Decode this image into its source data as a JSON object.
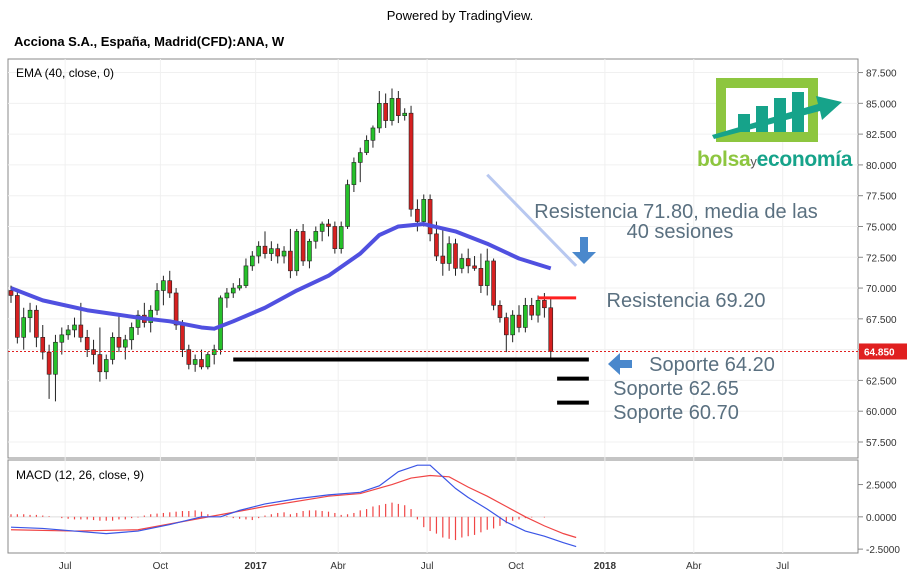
{
  "header": {
    "powered_by": "Powered by TradingView.",
    "symbol_title": "Acciona S.A., España, Madrid(CFD):ANA, W"
  },
  "indicators": {
    "ema_label": "EMA (40, close, 0)",
    "macd_label": "MACD (12, 26, close, 9)"
  },
  "logo": {
    "part1": "bolsa",
    "part2": "y",
    "part3": "economía",
    "colors": {
      "green": "#8dc63f",
      "teal": "#16a38a"
    }
  },
  "colors": {
    "up": "#26c12a",
    "down": "#d62020",
    "ema": "#5050e0",
    "macd": "#3a55e6",
    "signal": "#f04545",
    "resistance_line": "#ff2020",
    "support_line": "#000000",
    "annotation": "#5a7080",
    "arrow": "#4a88cc",
    "price_tag": "#e02020"
  },
  "chart_data": [
    {
      "type": "candlestick",
      "title": "Acciona S.A., España, Madrid(CFD):ANA, W",
      "y_axis_ticks": [
        "87.500",
        "85.000",
        "82.500",
        "80.000",
        "77.500",
        "75.000",
        "72.500",
        "70.000",
        "67.500",
        "65.000",
        "62.500",
        "60.000",
        "57.500"
      ],
      "x_axis_ticks": [
        "Jul",
        "Oct",
        "2017",
        "Abr",
        "Jul",
        "Oct",
        "2018",
        "Abr",
        "Jul"
      ],
      "ylim": [
        56.2,
        88.6
      ],
      "last_price_label": "64.850",
      "ohlc": [
        [
          69.8,
          70.2,
          68.8,
          69.4
        ],
        [
          69.4,
          69.8,
          65.5,
          66.0
        ],
        [
          66.0,
          68.4,
          65.0,
          67.6
        ],
        [
          67.6,
          68.8,
          66.4,
          68.2
        ],
        [
          68.2,
          68.6,
          65.2,
          66.0
        ],
        [
          66.0,
          67.0,
          64.2,
          64.8
        ],
        [
          64.8,
          65.4,
          61.0,
          63.0
        ],
        [
          63.0,
          66.2,
          60.8,
          65.6
        ],
        [
          65.6,
          66.8,
          64.6,
          66.2
        ],
        [
          66.2,
          67.0,
          65.8,
          66.6
        ],
        [
          66.6,
          67.6,
          66.0,
          67.0
        ],
        [
          67.0,
          68.8,
          65.6,
          66.0
        ],
        [
          66.0,
          66.6,
          64.4,
          65.0
        ],
        [
          65.0,
          65.8,
          63.8,
          64.6
        ],
        [
          64.6,
          66.8,
          62.4,
          63.2
        ],
        [
          63.2,
          64.6,
          62.6,
          64.2
        ],
        [
          64.2,
          66.4,
          63.8,
          66.0
        ],
        [
          66.0,
          67.8,
          64.8,
          65.2
        ],
        [
          65.2,
          66.2,
          64.2,
          65.8
        ],
        [
          65.8,
          67.2,
          65.0,
          66.8
        ],
        [
          66.8,
          68.2,
          66.2,
          67.8
        ],
        [
          67.8,
          68.8,
          66.8,
          67.2
        ],
        [
          67.2,
          68.6,
          66.4,
          68.2
        ],
        [
          68.2,
          70.4,
          67.8,
          69.8
        ],
        [
          69.8,
          71.0,
          68.6,
          70.6
        ],
        [
          70.6,
          71.4,
          69.2,
          69.6
        ],
        [
          69.6,
          70.0,
          66.6,
          67.0
        ],
        [
          67.0,
          67.4,
          64.4,
          65.0
        ],
        [
          65.0,
          65.4,
          63.4,
          63.8
        ],
        [
          63.8,
          64.6,
          63.2,
          64.2
        ],
        [
          64.2,
          65.0,
          63.4,
          63.6
        ],
        [
          63.6,
          64.8,
          63.4,
          64.6
        ],
        [
          64.6,
          65.4,
          63.8,
          65.0
        ],
        [
          65.0,
          69.4,
          64.6,
          69.2
        ],
        [
          69.2,
          70.0,
          68.4,
          69.6
        ],
        [
          69.6,
          70.4,
          69.2,
          70.0
        ],
        [
          70.0,
          70.8,
          69.8,
          70.2
        ],
        [
          70.2,
          72.4,
          70.0,
          71.8
        ],
        [
          71.8,
          73.0,
          71.4,
          72.6
        ],
        [
          72.6,
          73.8,
          72.0,
          73.4
        ],
        [
          73.4,
          74.6,
          72.4,
          72.8
        ],
        [
          72.8,
          73.8,
          72.2,
          73.2
        ],
        [
          73.2,
          73.6,
          72.0,
          72.6
        ],
        [
          72.6,
          73.4,
          72.0,
          73.0
        ],
        [
          73.0,
          74.8,
          70.8,
          71.4
        ],
        [
          71.4,
          74.8,
          71.0,
          74.6
        ],
        [
          74.6,
          75.2,
          71.8,
          72.2
        ],
        [
          72.2,
          74.0,
          71.6,
          73.8
        ],
        [
          73.8,
          75.0,
          73.2,
          74.6
        ],
        [
          74.6,
          75.4,
          73.8,
          75.2
        ],
        [
          75.2,
          75.6,
          74.2,
          75.0
        ],
        [
          75.0,
          75.4,
          72.8,
          73.2
        ],
        [
          73.2,
          75.4,
          72.8,
          75.0
        ],
        [
          75.0,
          78.8,
          74.8,
          78.4
        ],
        [
          78.4,
          80.6,
          77.8,
          80.2
        ],
        [
          80.2,
          81.4,
          78.6,
          81.0
        ],
        [
          81.0,
          82.4,
          80.8,
          82.0
        ],
        [
          82.0,
          83.2,
          81.4,
          83.0
        ],
        [
          83.0,
          86.0,
          82.6,
          85.0
        ],
        [
          85.0,
          85.8,
          83.0,
          83.6
        ],
        [
          83.6,
          86.2,
          83.2,
          85.4
        ],
        [
          85.4,
          86.0,
          83.4,
          84.0
        ],
        [
          84.0,
          84.6,
          83.6,
          84.2
        ],
        [
          84.2,
          84.8,
          75.8,
          76.4
        ],
        [
          76.4,
          77.2,
          74.6,
          75.4
        ],
        [
          75.4,
          77.6,
          75.0,
          77.2
        ],
        [
          77.2,
          77.6,
          73.8,
          74.4
        ],
        [
          74.4,
          75.4,
          72.2,
          72.6
        ],
        [
          72.6,
          74.8,
          71.0,
          72.0
        ],
        [
          72.0,
          74.2,
          71.4,
          73.6
        ],
        [
          73.6,
          74.0,
          71.0,
          71.6
        ],
        [
          71.6,
          72.8,
          71.2,
          72.4
        ],
        [
          72.4,
          73.2,
          71.2,
          71.8
        ],
        [
          71.8,
          72.6,
          71.4,
          71.6
        ],
        [
          71.6,
          72.8,
          69.6,
          70.2
        ],
        [
          70.2,
          73.2,
          69.4,
          72.2
        ],
        [
          72.2,
          72.4,
          68.2,
          68.6
        ],
        [
          68.6,
          69.0,
          67.2,
          67.6
        ],
        [
          67.6,
          68.0,
          64.8,
          66.2
        ],
        [
          66.2,
          68.2,
          65.6,
          67.8
        ],
        [
          67.8,
          68.6,
          66.4,
          66.8
        ],
        [
          66.8,
          69.2,
          66.4,
          68.6
        ],
        [
          68.6,
          69.2,
          67.4,
          67.8
        ],
        [
          67.8,
          69.4,
          67.2,
          69.0
        ],
        [
          69.0,
          69.6,
          67.6,
          68.4
        ],
        [
          68.4,
          69.2,
          64.2,
          64.85
        ]
      ],
      "ema40": [
        [
          0,
          70.0
        ],
        [
          5,
          69.0
        ],
        [
          12,
          68.2
        ],
        [
          20,
          67.6
        ],
        [
          25,
          67.3
        ],
        [
          30,
          66.8
        ],
        [
          32,
          66.7
        ],
        [
          35,
          67.3
        ],
        [
          40,
          68.4
        ],
        [
          45,
          69.8
        ],
        [
          50,
          71.0
        ],
        [
          55,
          72.8
        ],
        [
          58,
          74.3
        ],
        [
          61,
          75.0
        ],
        [
          65,
          75.2
        ],
        [
          70,
          74.6
        ],
        [
          75,
          73.6
        ],
        [
          80,
          72.4
        ],
        [
          85,
          71.6
        ]
      ],
      "annotations": [
        {
          "text": "Resistencia 71.80, media de las",
          "value": 71.8
        },
        {
          "text": "40 sesiones",
          "value": 71.8
        },
        {
          "text": "Resistencia 69.20",
          "value": 69.2
        },
        {
          "text": "Soporte 64.20",
          "value": 64.2
        },
        {
          "text": "Soporte 62.65",
          "value": 62.65
        },
        {
          "text": "Soporte 60.70",
          "value": 60.7
        }
      ],
      "lines": {
        "resistance_trend": {
          "from": [
            75,
            79.2
          ],
          "to": [
            89,
            71.8
          ]
        },
        "resistance_69_20": {
          "from": [
            83,
            69.2
          ],
          "to": [
            89,
            69.2
          ],
          "value": 69.2
        },
        "support_64_20": {
          "from": [
            35,
            64.2
          ],
          "to": [
            91,
            64.2
          ],
          "value": 64.2
        },
        "support_62_65": {
          "from": [
            86,
            62.65
          ],
          "to": [
            91,
            62.65
          ],
          "value": 62.65
        },
        "support_60_70": {
          "from": [
            86,
            60.7
          ],
          "to": [
            91,
            60.7
          ],
          "value": 60.7
        }
      }
    },
    {
      "type": "line",
      "title": "MACD (12, 26, close, 9)",
      "y_axis_ticks": [
        "2.5000",
        "0.0000",
        "-2.5000"
      ],
      "ylim": [
        -2.8,
        4.4
      ],
      "macd": [
        [
          0,
          -0.8
        ],
        [
          5,
          -0.9
        ],
        [
          10,
          -1.1
        ],
        [
          15,
          -1.3
        ],
        [
          20,
          -1.1
        ],
        [
          25,
          -0.6
        ],
        [
          30,
          0.0
        ],
        [
          33,
          0.0
        ],
        [
          36,
          0.5
        ],
        [
          40,
          1.0
        ],
        [
          45,
          1.4
        ],
        [
          50,
          1.7
        ],
        [
          55,
          1.9
        ],
        [
          58,
          2.4
        ],
        [
          61,
          3.5
        ],
        [
          64,
          4.0
        ],
        [
          66,
          4.0
        ],
        [
          68,
          3.1
        ],
        [
          70,
          2.2
        ],
        [
          72,
          1.5
        ],
        [
          75,
          0.6
        ],
        [
          78,
          -0.4
        ],
        [
          81,
          -1.1
        ],
        [
          84,
          -1.5
        ],
        [
          87,
          -2.0
        ],
        [
          89,
          -2.3
        ]
      ],
      "signal": [
        [
          0,
          -1.0
        ],
        [
          10,
          -1.1
        ],
        [
          20,
          -1.0
        ],
        [
          30,
          -0.1
        ],
        [
          40,
          0.8
        ],
        [
          50,
          1.6
        ],
        [
          55,
          1.8
        ],
        [
          60,
          2.5
        ],
        [
          63,
          3.0
        ],
        [
          66,
          3.2
        ],
        [
          69,
          3.1
        ],
        [
          72,
          2.3
        ],
        [
          75,
          1.6
        ],
        [
          78,
          0.8
        ],
        [
          81,
          0.0
        ],
        [
          84,
          -0.7
        ],
        [
          87,
          -1.3
        ],
        [
          89,
          -1.6
        ]
      ],
      "histogram": [
        0.2,
        0.2,
        0.2,
        0.15,
        0.15,
        0.1,
        0.05,
        0.0,
        -0.1,
        -0.15,
        -0.2,
        -0.2,
        -0.2,
        -0.25,
        -0.3,
        -0.3,
        -0.3,
        -0.2,
        -0.2,
        -0.1,
        -0.05,
        0.1,
        0.2,
        0.25,
        0.3,
        0.35,
        0.4,
        0.45,
        0.45,
        0.5,
        0.4,
        0.2,
        0.0,
        0.0,
        0.05,
        -0.1,
        -0.15,
        -0.2,
        -0.25,
        -0.1,
        0.1,
        0.2,
        0.3,
        0.35,
        0.2,
        0.3,
        0.45,
        0.5,
        0.5,
        0.45,
        0.4,
        0.3,
        0.15,
        0.2,
        0.3,
        0.5,
        0.6,
        0.8,
        0.9,
        1.0,
        1.1,
        1.0,
        0.9,
        0.6,
        -0.2,
        -0.8,
        -1.1,
        -1.3,
        -1.6,
        -1.7,
        -1.8,
        -1.6,
        -1.5,
        -1.4,
        -1.2,
        -1.0,
        -0.9,
        -0.7,
        -0.5,
        -0.3,
        -0.2,
        -0.1,
        -0.05,
        0.0,
        -0.05,
        0.0
      ]
    }
  ]
}
